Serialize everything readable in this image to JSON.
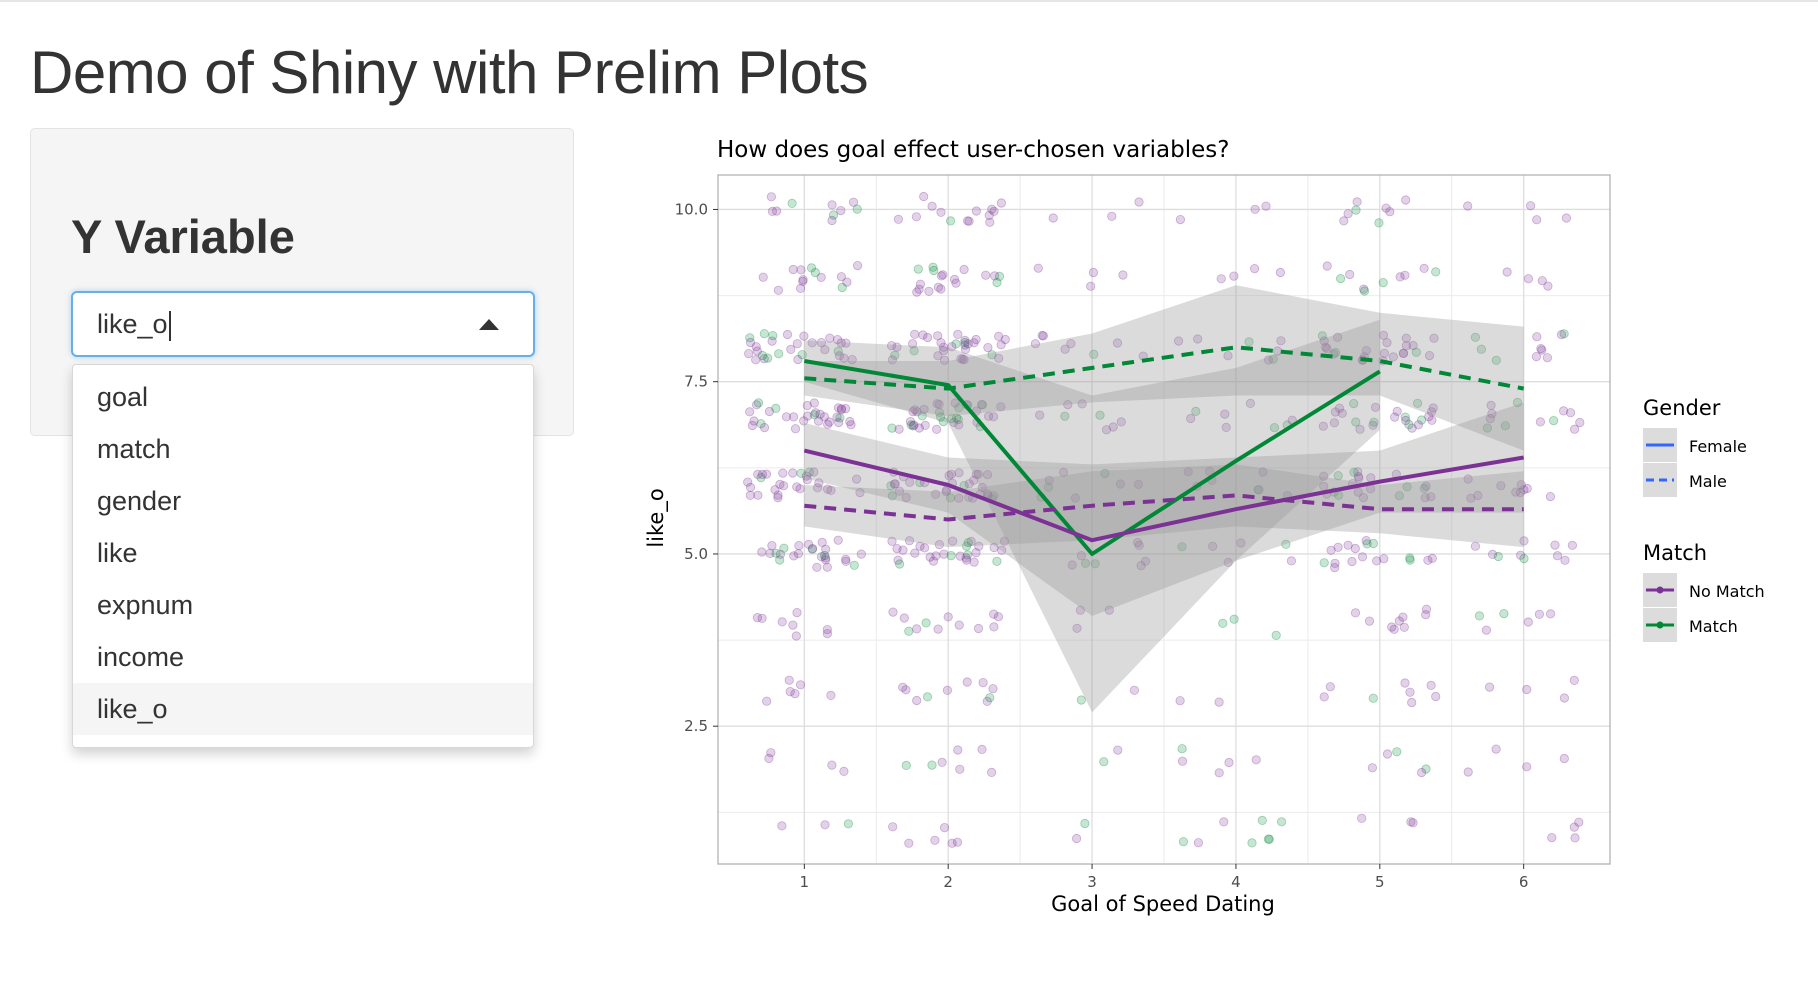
{
  "app": {
    "title": "Demo of Shiny with Prelim Plots"
  },
  "sidebar": {
    "label": "Y Variable",
    "select": {
      "value": "like_o",
      "options": [
        "goal",
        "match",
        "gender",
        "like",
        "expnum",
        "income",
        "like_o"
      ],
      "highlighted": "like_o"
    }
  },
  "colors": {
    "no_match": "#7b3294",
    "match": "#008837",
    "legend_gender": "#3366ff",
    "ribbon": "#999999",
    "panel_border": "#b3b3b3",
    "grid": "#ebebeb"
  },
  "chart_data": {
    "type": "line",
    "title": "How does goal effect user-chosen variables?",
    "xlabel": "Goal of Speed Dating",
    "ylabel": "like_o",
    "xlim": [
      0.4,
      6.6
    ],
    "ylim": [
      0.5,
      10.5
    ],
    "x_ticks": [
      "1",
      "2",
      "3",
      "4",
      "5",
      "6"
    ],
    "y_ticks": [
      "2.5",
      "5.0",
      "7.5",
      "10.0"
    ],
    "grid": true,
    "legend_position": "right",
    "legends": [
      {
        "title": "Gender",
        "entries": [
          {
            "label": "Female",
            "linetype": "solid"
          },
          {
            "label": "Male",
            "linetype": "dashed"
          }
        ]
      },
      {
        "title": "Match",
        "entries": [
          {
            "label": "No Match",
            "color": "#7b3294"
          },
          {
            "label": "Match",
            "color": "#008837"
          }
        ]
      }
    ],
    "series": [
      {
        "gender": "Female",
        "match": "Match",
        "linetype": "solid",
        "color": "#008837",
        "x": [
          1,
          2,
          3,
          4,
          5
        ],
        "y": [
          7.8,
          7.45,
          5.0,
          6.35,
          7.65
        ],
        "lower": [
          7.5,
          6.9,
          2.7,
          4.9,
          6.8
        ],
        "upper": [
          8.1,
          8.0,
          7.3,
          7.7,
          8.4
        ]
      },
      {
        "gender": "Male",
        "match": "Match",
        "linetype": "dashed",
        "color": "#008837",
        "x": [
          1,
          2,
          3,
          4,
          5,
          6
        ],
        "y": [
          7.55,
          7.4,
          7.7,
          8.0,
          7.8,
          7.4
        ],
        "lower": [
          7.3,
          7.0,
          7.2,
          7.3,
          7.3,
          6.5
        ],
        "upper": [
          7.8,
          7.8,
          8.2,
          8.9,
          8.5,
          8.3
        ]
      },
      {
        "gender": "Female",
        "match": "No Match",
        "linetype": "solid",
        "color": "#7b3294",
        "x": [
          1,
          2,
          3,
          4,
          5,
          6
        ],
        "y": [
          6.5,
          6.0,
          5.2,
          5.65,
          6.05,
          6.4
        ],
        "lower": [
          6.1,
          5.6,
          4.1,
          4.9,
          5.6,
          5.6
        ],
        "upper": [
          6.9,
          6.4,
          6.3,
          6.4,
          6.5,
          7.2
        ]
      },
      {
        "gender": "Male",
        "match": "No Match",
        "linetype": "dashed",
        "color": "#7b3294",
        "x": [
          1,
          2,
          3,
          4,
          5,
          6
        ],
        "y": [
          5.7,
          5.5,
          5.7,
          5.85,
          5.65,
          5.65
        ],
        "lower": [
          5.4,
          5.1,
          5.2,
          5.4,
          5.3,
          5.1
        ],
        "upper": [
          6.0,
          5.9,
          6.2,
          6.3,
          6.0,
          6.2
        ]
      }
    ],
    "points_note_values": {
      "like_o_levels": [
        1,
        2,
        3,
        4,
        5,
        6,
        7,
        8,
        9,
        10
      ]
    }
  }
}
